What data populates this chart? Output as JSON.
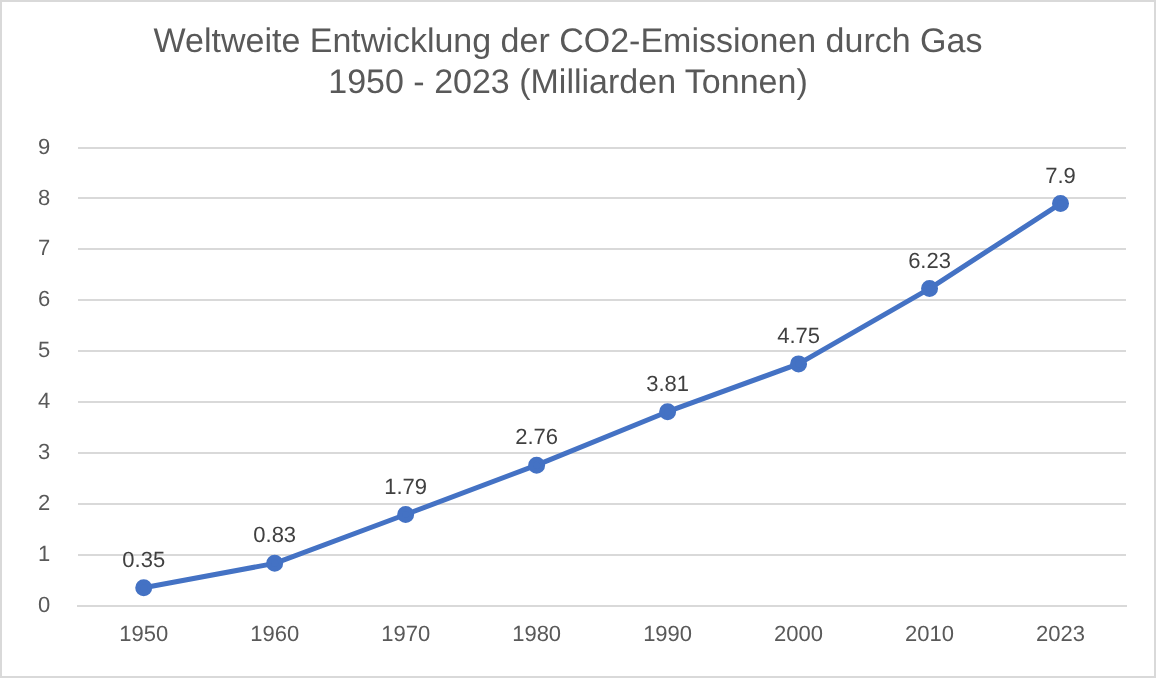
{
  "chart_data": {
    "type": "line",
    "title": "Weltweite Entwicklung der CO2-Emissionen durch Gas\n1950 - 2023 (Milliarden Tonnen)",
    "categories": [
      "1950",
      "1960",
      "1970",
      "1980",
      "1990",
      "2000",
      "2010",
      "2023"
    ],
    "series": [
      {
        "color": "#4472c4",
        "values": [
          0.35,
          0.83,
          1.79,
          2.76,
          3.81,
          4.75,
          6.23,
          7.9
        ]
      }
    ],
    "ylim": [
      0,
      9
    ],
    "yticks": [
      0,
      1,
      2,
      3,
      4,
      5,
      6,
      7,
      8,
      9
    ],
    "grid": "y",
    "marker": "circle",
    "line_style": "solid",
    "data_labels": true,
    "legend": false
  }
}
